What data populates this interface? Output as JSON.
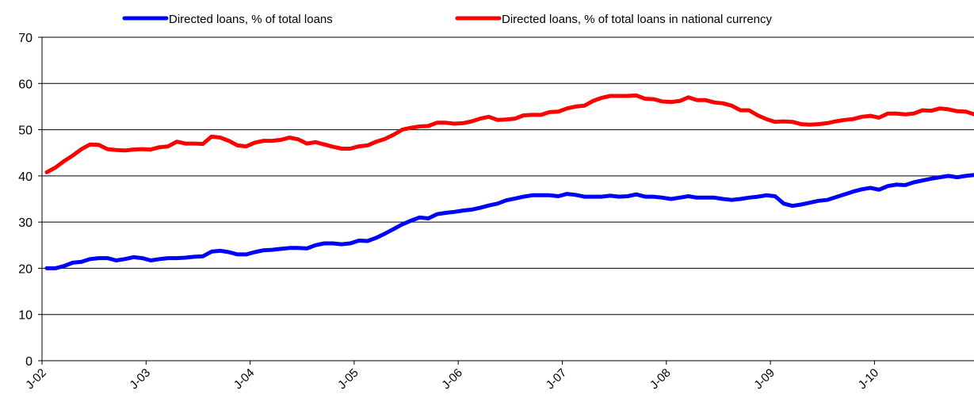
{
  "chart_data": {
    "type": "line",
    "title": "",
    "xlabel": "",
    "ylabel": "",
    "ylim": [
      0,
      70
    ],
    "yticks": [
      0,
      10,
      20,
      30,
      40,
      50,
      60,
      70
    ],
    "grid": true,
    "legend_position": "top",
    "x_tick_labels": [
      "J-02",
      "J-03",
      "J-04",
      "J-05",
      "J-06",
      "J-07",
      "J-08",
      "J-09",
      "J-10"
    ],
    "x_start": "2002-01",
    "series": [
      {
        "name": "Directed loans, % of total loans",
        "color": "#0000ff",
        "values": [
          20.0,
          20.0,
          20.5,
          21.2,
          21.4,
          22.0,
          22.2,
          22.2,
          21.7,
          22.0,
          22.4,
          22.2,
          21.7,
          22.0,
          22.2,
          22.2,
          22.3,
          22.5,
          22.6,
          23.6,
          23.8,
          23.5,
          23.0,
          23.0,
          23.5,
          23.9,
          24.0,
          24.2,
          24.4,
          24.4,
          24.3,
          25.0,
          25.4,
          25.4,
          25.2,
          25.4,
          26.0,
          25.9,
          26.6,
          27.5,
          28.5,
          29.5,
          30.3,
          31.0,
          30.8,
          31.7,
          32.0,
          32.2,
          32.5,
          32.7,
          33.1,
          33.6,
          34.0,
          34.7,
          35.1,
          35.5,
          35.8,
          35.8,
          35.8,
          35.6,
          36.1,
          35.9,
          35.5,
          35.5,
          35.5,
          35.7,
          35.5,
          35.6,
          36.0,
          35.5,
          35.5,
          35.3,
          35.0,
          35.3,
          35.6,
          35.3,
          35.3,
          35.3,
          35.0,
          34.8,
          35.0,
          35.3,
          35.5,
          35.8,
          35.6,
          34.0,
          33.5,
          33.8,
          34.2,
          34.6,
          34.8,
          35.4,
          36.0,
          36.6,
          37.1,
          37.4,
          37.0,
          37.8,
          38.1,
          38.0,
          38.6,
          39.0,
          39.4,
          39.7,
          40.0,
          39.7,
          40.0,
          40.2
        ]
      },
      {
        "name": "Directed loans, % of total loans in national currency",
        "color": "#ff0000",
        "values": [
          40.8,
          41.8,
          43.2,
          44.4,
          45.8,
          46.8,
          46.7,
          45.8,
          45.6,
          45.5,
          45.7,
          45.8,
          45.7,
          46.2,
          46.4,
          47.4,
          47.0,
          47.0,
          46.9,
          48.5,
          48.3,
          47.6,
          46.6,
          46.4,
          47.2,
          47.6,
          47.6,
          47.8,
          48.3,
          47.9,
          47.0,
          47.3,
          46.8,
          46.3,
          45.9,
          45.9,
          46.4,
          46.6,
          47.4,
          48.0,
          48.9,
          50.0,
          50.4,
          50.7,
          50.8,
          51.5,
          51.5,
          51.3,
          51.4,
          51.8,
          52.4,
          52.8,
          52.1,
          52.2,
          52.4,
          53.1,
          53.2,
          53.2,
          53.8,
          53.9,
          54.6,
          55.0,
          55.2,
          56.2,
          56.9,
          57.3,
          57.3,
          57.3,
          57.4,
          56.7,
          56.6,
          56.1,
          56.0,
          56.2,
          57.0,
          56.4,
          56.4,
          55.9,
          55.7,
          55.2,
          54.2,
          54.2,
          53.1,
          52.3,
          51.7,
          51.8,
          51.7,
          51.2,
          51.1,
          51.2,
          51.4,
          51.8,
          52.1,
          52.3,
          52.8,
          53.0,
          52.6,
          53.5,
          53.5,
          53.3,
          53.5,
          54.2,
          54.1,
          54.6,
          54.4,
          54.0,
          53.9,
          53.3
        ]
      }
    ]
  }
}
